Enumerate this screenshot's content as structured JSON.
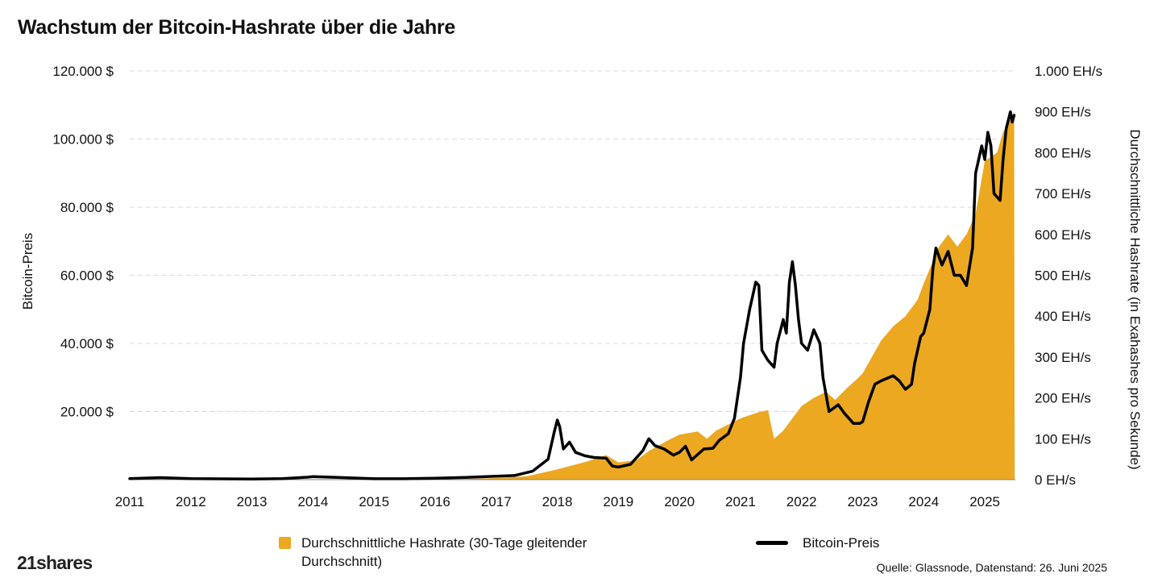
{
  "title": "Wachstum der Bitcoin-Hashrate über die Jahre",
  "chart_data": {
    "type": "area",
    "title": "Wachstum der Bitcoin-Hashrate über die Jahre",
    "x_ticks": [
      "2011",
      "2012",
      "2013",
      "2014",
      "2015",
      "2016",
      "2017",
      "2018",
      "2019",
      "2020",
      "2021",
      "2022",
      "2023",
      "2024",
      "2025"
    ],
    "left_axis": {
      "label": "Bitcoin-Preis",
      "range": [
        0,
        120000
      ],
      "ticks": [
        "20.000 $",
        "40.000 $",
        "60.000 $",
        "80.000 $",
        "100.000 $",
        "120.000 $"
      ]
    },
    "right_axis": {
      "label": "Durchschnittliche Hashrate (in Exahashes pro Sekunde)",
      "range": [
        0,
        1000
      ],
      "ticks": [
        "0 EH/s",
        "100 EH/s",
        "200 EH/s",
        "300 EH/s",
        "400 EH/s",
        "500 EH/s",
        "600 EH/s",
        "700 EH/s",
        "800 EH/s",
        "900 EH/s",
        "1.000 EH/s"
      ]
    },
    "grid": true,
    "legend_placement": "bottom",
    "series": [
      {
        "name": "Durchschnittliche Hashrate (30-Tage gleitender Durchschnitt)",
        "type": "area",
        "axis": "right",
        "color": "#EBA820",
        "points": [
          [
            2011,
            0
          ],
          [
            2014,
            0
          ],
          [
            2016,
            0.5
          ],
          [
            2016.5,
            1.5
          ],
          [
            2017,
            4
          ],
          [
            2017.5,
            8
          ],
          [
            2018,
            25
          ],
          [
            2018.5,
            45
          ],
          [
            2018.8,
            60
          ],
          [
            2019,
            42
          ],
          [
            2019.3,
            48
          ],
          [
            2019.5,
            70
          ],
          [
            2019.8,
            95
          ],
          [
            2020,
            110
          ],
          [
            2020.3,
            118
          ],
          [
            2020.45,
            100
          ],
          [
            2020.6,
            120
          ],
          [
            2020.8,
            135
          ],
          [
            2021,
            150
          ],
          [
            2021.3,
            165
          ],
          [
            2021.45,
            170
          ],
          [
            2021.55,
            100
          ],
          [
            2021.7,
            120
          ],
          [
            2021.9,
            160
          ],
          [
            2022,
            180
          ],
          [
            2022.2,
            200
          ],
          [
            2022.4,
            215
          ],
          [
            2022.55,
            195
          ],
          [
            2022.75,
            225
          ],
          [
            2022.9,
            245
          ],
          [
            2023,
            260
          ],
          [
            2023.3,
            340
          ],
          [
            2023.5,
            375
          ],
          [
            2023.7,
            400
          ],
          [
            2023.9,
            440
          ],
          [
            2024,
            480
          ],
          [
            2024.25,
            570
          ],
          [
            2024.4,
            600
          ],
          [
            2024.55,
            570
          ],
          [
            2024.7,
            600
          ],
          [
            2024.85,
            650
          ],
          [
            2025,
            780
          ],
          [
            2025.2,
            800
          ],
          [
            2025.3,
            850
          ],
          [
            2025.45,
            890
          ],
          [
            2025.48,
            890
          ],
          [
            2025.49,
            0
          ]
        ]
      },
      {
        "name": "Bitcoin-Preis",
        "type": "line",
        "axis": "left",
        "color": "#000000",
        "points": [
          [
            2011,
            300
          ],
          [
            2011.5,
            600
          ],
          [
            2012,
            300
          ],
          [
            2013,
            200
          ],
          [
            2013.5,
            300
          ],
          [
            2013.9,
            700
          ],
          [
            2014,
            900
          ],
          [
            2014.5,
            600
          ],
          [
            2015,
            250
          ],
          [
            2015.5,
            250
          ],
          [
            2016,
            400
          ],
          [
            2016.5,
            650
          ],
          [
            2017,
            1000
          ],
          [
            2017.3,
            1200
          ],
          [
            2017.6,
            2500
          ],
          [
            2017.85,
            6000
          ],
          [
            2017.95,
            14000
          ],
          [
            2018,
            17500
          ],
          [
            2018.04,
            15500
          ],
          [
            2018.1,
            9000
          ],
          [
            2018.2,
            11000
          ],
          [
            2018.3,
            8000
          ],
          [
            2018.45,
            7000
          ],
          [
            2018.6,
            6500
          ],
          [
            2018.8,
            6300
          ],
          [
            2018.9,
            4000
          ],
          [
            2019,
            3700
          ],
          [
            2019.2,
            4500
          ],
          [
            2019.4,
            8500
          ],
          [
            2019.5,
            12000
          ],
          [
            2019.6,
            10000
          ],
          [
            2019.75,
            9000
          ],
          [
            2019.9,
            7200
          ],
          [
            2020,
            8000
          ],
          [
            2020.1,
            9800
          ],
          [
            2020.2,
            5800
          ],
          [
            2020.4,
            9000
          ],
          [
            2020.55,
            9200
          ],
          [
            2020.65,
            11500
          ],
          [
            2020.8,
            13500
          ],
          [
            2020.9,
            18000
          ],
          [
            2021,
            30000
          ],
          [
            2021.05,
            40000
          ],
          [
            2021.15,
            50000
          ],
          [
            2021.25,
            58000
          ],
          [
            2021.3,
            57000
          ],
          [
            2021.35,
            38000
          ],
          [
            2021.45,
            35000
          ],
          [
            2021.55,
            33000
          ],
          [
            2021.6,
            40000
          ],
          [
            2021.7,
            47000
          ],
          [
            2021.75,
            43000
          ],
          [
            2021.8,
            58000
          ],
          [
            2021.85,
            64000
          ],
          [
            2021.9,
            57000
          ],
          [
            2021.95,
            47000
          ],
          [
            2022,
            40000
          ],
          [
            2022.1,
            38000
          ],
          [
            2022.2,
            44000
          ],
          [
            2022.3,
            40000
          ],
          [
            2022.35,
            30000
          ],
          [
            2022.45,
            20000
          ],
          [
            2022.6,
            22000
          ],
          [
            2022.7,
            19500
          ],
          [
            2022.85,
            16500
          ],
          [
            2022.95,
            16500
          ],
          [
            2023,
            17000
          ],
          [
            2023.1,
            23000
          ],
          [
            2023.2,
            28000
          ],
          [
            2023.3,
            29000
          ],
          [
            2023.5,
            30500
          ],
          [
            2023.6,
            29000
          ],
          [
            2023.7,
            26500
          ],
          [
            2023.8,
            28000
          ],
          [
            2023.85,
            34000
          ],
          [
            2023.95,
            42000
          ],
          [
            2024,
            43000
          ],
          [
            2024.1,
            50000
          ],
          [
            2024.15,
            62000
          ],
          [
            2024.2,
            68000
          ],
          [
            2024.3,
            63000
          ],
          [
            2024.4,
            67000
          ],
          [
            2024.5,
            60000
          ],
          [
            2024.6,
            60000
          ],
          [
            2024.7,
            57000
          ],
          [
            2024.8,
            68000
          ],
          [
            2024.85,
            90000
          ],
          [
            2024.95,
            98000
          ],
          [
            2025,
            94000
          ],
          [
            2025.05,
            102000
          ],
          [
            2025.1,
            98000
          ],
          [
            2025.15,
            84000
          ],
          [
            2025.25,
            82000
          ],
          [
            2025.3,
            94000
          ],
          [
            2025.35,
            103000
          ],
          [
            2025.42,
            108000
          ],
          [
            2025.45,
            105000
          ],
          [
            2025.48,
            107000
          ]
        ]
      }
    ]
  },
  "legend": {
    "hashrate_label": "Durchschnittliche Hashrate (30-Tage gleitender Durchschnitt)",
    "price_label": "Bitcoin-Preis"
  },
  "source": "Quelle: Glassnode, Datenstand: 26. Juni 2025",
  "logo_text": "21shares",
  "colors": {
    "hashrate": "#EBA820",
    "price": "#000000",
    "grid": "#d9d9d9"
  }
}
